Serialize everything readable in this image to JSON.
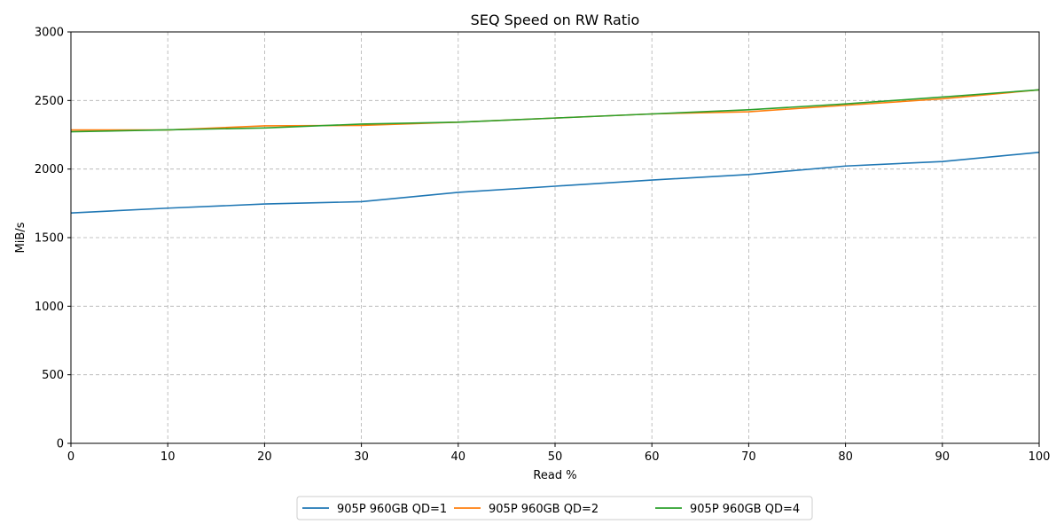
{
  "chart_data": {
    "type": "line",
    "title": "SEQ Speed on RW Ratio",
    "xlabel": "Read %",
    "ylabel": "MiB/s",
    "xlim": [
      0,
      100
    ],
    "ylim": [
      0,
      3000
    ],
    "xticks": [
      0,
      10,
      20,
      30,
      40,
      50,
      60,
      70,
      80,
      90,
      100
    ],
    "yticks": [
      0,
      500,
      1000,
      1500,
      2000,
      2500,
      3000
    ],
    "grid": true,
    "legend_position": "bottom-center",
    "x": [
      0,
      10,
      20,
      30,
      40,
      50,
      60,
      70,
      80,
      90,
      100
    ],
    "series": [
      {
        "name": "905P 960GB QD=1",
        "color": "#1f77b4",
        "values": [
          1680,
          1715,
          1745,
          1762,
          1830,
          1875,
          1920,
          1960,
          2022,
          2055,
          2122
        ]
      },
      {
        "name": "905P 960GB QD=2",
        "color": "#ff7f0e",
        "values": [
          2285,
          2285,
          2315,
          2318,
          2342,
          2372,
          2402,
          2418,
          2465,
          2512,
          2578
        ]
      },
      {
        "name": "905P 960GB QD=4",
        "color": "#2ca02c",
        "values": [
          2272,
          2286,
          2300,
          2328,
          2342,
          2372,
          2402,
          2432,
          2475,
          2525,
          2578
        ]
      }
    ]
  }
}
